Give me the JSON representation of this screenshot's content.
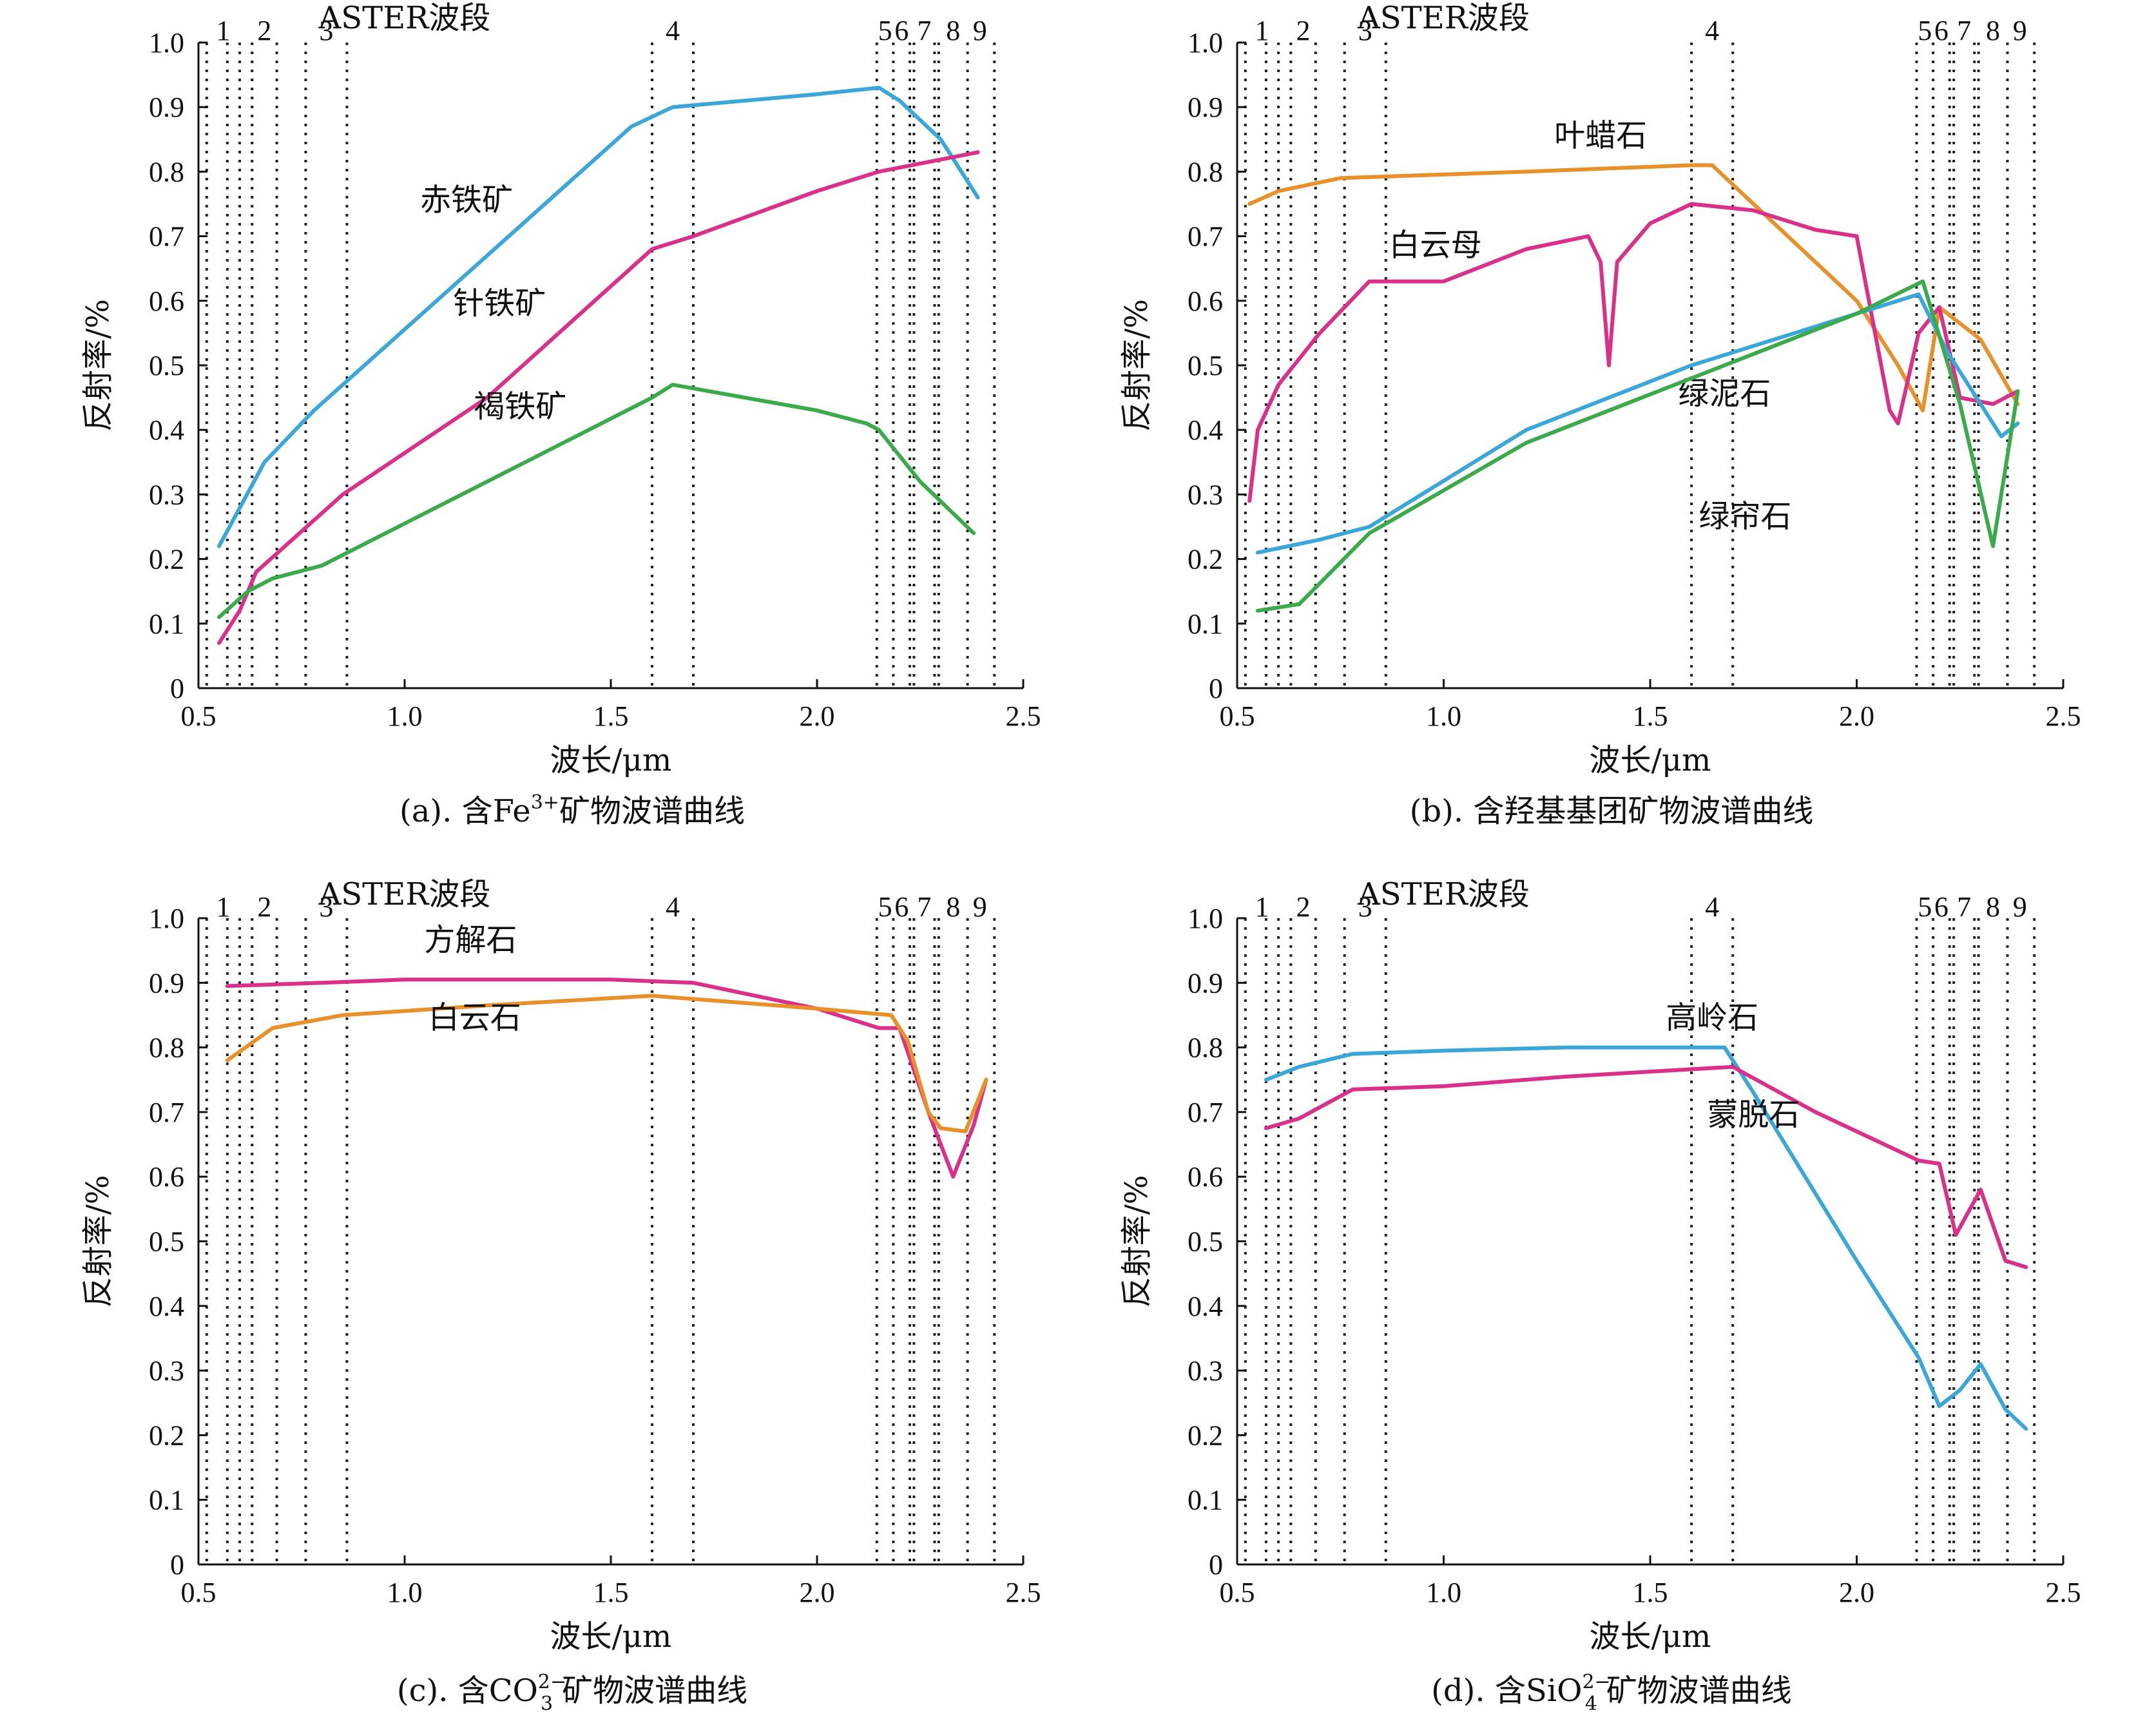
{
  "chart_data": [
    {
      "type": "line",
      "caption": {
        "prefix": "(a). 含Fe",
        "sup": "3+",
        "sub": "",
        "suffix": "矿物波谱曲线"
      },
      "band_header": "ASTER波段",
      "bands": [
        {
          "label": "1",
          "range": [
            0.52,
            0.6
          ]
        },
        {
          "label": "2",
          "range": [
            0.63,
            0.69
          ]
        },
        {
          "label": "3",
          "range": [
            0.76,
            0.86
          ]
        },
        {
          "label": "4",
          "range": [
            1.6,
            1.7
          ]
        },
        {
          "label": "5",
          "range": [
            2.145,
            2.185
          ]
        },
        {
          "label": "6",
          "range": [
            2.185,
            2.225
          ]
        },
        {
          "label": "7",
          "range": [
            2.235,
            2.285
          ]
        },
        {
          "label": "8",
          "range": [
            2.295,
            2.365
          ]
        },
        {
          "label": "9",
          "range": [
            2.36,
            2.43
          ]
        }
      ],
      "band_lines": [
        0.52,
        0.57,
        0.6,
        0.63,
        0.69,
        0.76,
        0.86,
        1.6,
        1.7,
        2.145,
        2.185,
        2.225,
        2.235,
        2.285,
        2.295,
        2.365,
        2.43
      ],
      "xlabel": "波长/μm",
      "ylabel": "反射率/%",
      "xlim": [
        0.5,
        2.5
      ],
      "ylim": [
        0,
        1.0
      ],
      "xticks": [
        "0.5",
        "1.0",
        "1.5",
        "2.0",
        "2.5"
      ],
      "yticks": [
        "0",
        "0.1",
        "0.2",
        "0.3",
        "0.4",
        "0.5",
        "0.6",
        "0.7",
        "0.8",
        "0.9",
        "1.0"
      ],
      "series": [
        {
          "name": "赤铁矿",
          "color": "#3BA6D8",
          "label_at": [
            1.15,
            0.74
          ],
          "points": [
            [
              0.55,
              0.22
            ],
            [
              0.66,
              0.35
            ],
            [
              0.78,
              0.43
            ],
            [
              1.2,
              0.67
            ],
            [
              1.55,
              0.87
            ],
            [
              1.65,
              0.9
            ],
            [
              2.0,
              0.92
            ],
            [
              2.15,
              0.93
            ],
            [
              2.2,
              0.91
            ],
            [
              2.3,
              0.85
            ],
            [
              2.39,
              0.76
            ]
          ]
        },
        {
          "name": "针铁矿",
          "color": "#D9308A",
          "label_at": [
            1.23,
            0.58
          ],
          "points": [
            [
              0.55,
              0.07
            ],
            [
              0.6,
              0.12
            ],
            [
              0.64,
              0.18
            ],
            [
              0.85,
              0.3
            ],
            [
              1.2,
              0.45
            ],
            [
              1.6,
              0.68
            ],
            [
              1.7,
              0.7
            ],
            [
              2.0,
              0.77
            ],
            [
              2.15,
              0.8
            ],
            [
              2.39,
              0.83
            ]
          ]
        },
        {
          "name": "褐铁矿",
          "color": "#3AAA4A",
          "label_at": [
            1.28,
            0.42
          ],
          "points": [
            [
              0.55,
              0.11
            ],
            [
              0.62,
              0.15
            ],
            [
              0.68,
              0.17
            ],
            [
              0.8,
              0.19
            ],
            [
              1.2,
              0.32
            ],
            [
              1.6,
              0.45
            ],
            [
              1.65,
              0.47
            ],
            [
              2.0,
              0.43
            ],
            [
              2.12,
              0.41
            ],
            [
              2.15,
              0.4
            ],
            [
              2.25,
              0.32
            ],
            [
              2.38,
              0.24
            ]
          ]
        }
      ]
    },
    {
      "type": "line",
      "caption": {
        "prefix": "(b). 含羟基基团矿物波谱曲线",
        "sup": "",
        "sub": "",
        "suffix": ""
      },
      "band_header": "ASTER波段",
      "bands": [
        {
          "label": "1",
          "range": [
            0.52,
            0.6
          ]
        },
        {
          "label": "2",
          "range": [
            0.63,
            0.69
          ]
        },
        {
          "label": "3",
          "range": [
            0.76,
            0.86
          ]
        },
        {
          "label": "4",
          "range": [
            1.6,
            1.7
          ]
        },
        {
          "label": "5",
          "range": [
            2.145,
            2.185
          ]
        },
        {
          "label": "6",
          "range": [
            2.185,
            2.225
          ]
        },
        {
          "label": "7",
          "range": [
            2.235,
            2.285
          ]
        },
        {
          "label": "8",
          "range": [
            2.295,
            2.365
          ]
        },
        {
          "label": "9",
          "range": [
            2.36,
            2.43
          ]
        }
      ],
      "band_lines": [
        0.52,
        0.57,
        0.6,
        0.63,
        0.69,
        0.76,
        0.86,
        1.6,
        1.7,
        2.145,
        2.185,
        2.225,
        2.235,
        2.285,
        2.295,
        2.365,
        2.43
      ],
      "xlabel": "波长/μm",
      "ylabel": "反射率/%",
      "xlim": [
        0.5,
        2.5
      ],
      "ylim": [
        0,
        1.0
      ],
      "xticks": [
        "0.5",
        "1.0",
        "1.5",
        "2.0",
        "2.5"
      ],
      "yticks": [
        "0",
        "0.1",
        "0.2",
        "0.3",
        "0.4",
        "0.5",
        "0.6",
        "0.7",
        "0.8",
        "0.9",
        "1.0"
      ],
      "series": [
        {
          "name": "叶蜡石",
          "color": "#E8902A",
          "label_at": [
            1.38,
            0.84
          ],
          "points": [
            [
              0.53,
              0.75
            ],
            [
              0.6,
              0.77
            ],
            [
              0.75,
              0.79
            ],
            [
              1.2,
              0.8
            ],
            [
              1.6,
              0.81
            ],
            [
              1.65,
              0.81
            ],
            [
              1.8,
              0.72
            ],
            [
              2.0,
              0.6
            ],
            [
              2.1,
              0.5
            ],
            [
              2.16,
              0.43
            ],
            [
              2.2,
              0.59
            ],
            [
              2.3,
              0.54
            ],
            [
              2.39,
              0.44
            ]
          ]
        },
        {
          "name": "白云母",
          "color": "#D9308A",
          "label_at": [
            0.98,
            0.67
          ],
          "points": [
            [
              0.53,
              0.29
            ],
            [
              0.55,
              0.4
            ],
            [
              0.6,
              0.47
            ],
            [
              0.7,
              0.55
            ],
            [
              0.82,
              0.63
            ],
            [
              1.0,
              0.63
            ],
            [
              1.2,
              0.68
            ],
            [
              1.35,
              0.7
            ],
            [
              1.38,
              0.66
            ],
            [
              1.4,
              0.5
            ],
            [
              1.42,
              0.66
            ],
            [
              1.5,
              0.72
            ],
            [
              1.6,
              0.75
            ],
            [
              1.75,
              0.74
            ],
            [
              1.9,
              0.71
            ],
            [
              2.0,
              0.7
            ],
            [
              2.08,
              0.43
            ],
            [
              2.1,
              0.41
            ],
            [
              2.15,
              0.55
            ],
            [
              2.2,
              0.59
            ],
            [
              2.25,
              0.45
            ],
            [
              2.33,
              0.44
            ],
            [
              2.39,
              0.46
            ]
          ]
        },
        {
          "name": "绿泥石",
          "color": "#3BA6D8",
          "label_at": [
            1.68,
            0.44
          ],
          "points": [
            [
              0.55,
              0.21
            ],
            [
              0.7,
              0.23
            ],
            [
              0.82,
              0.25
            ],
            [
              1.2,
              0.4
            ],
            [
              1.6,
              0.5
            ],
            [
              2.0,
              0.58
            ],
            [
              2.15,
              0.61
            ],
            [
              2.22,
              0.52
            ],
            [
              2.35,
              0.39
            ],
            [
              2.39,
              0.41
            ]
          ]
        },
        {
          "name": "绿帘石",
          "color": "#3AAA4A",
          "label_at": [
            1.73,
            0.25
          ],
          "points": [
            [
              0.55,
              0.12
            ],
            [
              0.65,
              0.13
            ],
            [
              0.82,
              0.24
            ],
            [
              1.2,
              0.38
            ],
            [
              1.6,
              0.48
            ],
            [
              2.0,
              0.58
            ],
            [
              2.16,
              0.63
            ],
            [
              2.25,
              0.44
            ],
            [
              2.33,
              0.22
            ],
            [
              2.39,
              0.46
            ]
          ]
        }
      ]
    },
    {
      "type": "line",
      "caption": {
        "prefix": "(c). 含CO",
        "sup": "2−",
        "sub": "3",
        "suffix": "矿物波谱曲线"
      },
      "band_header": "ASTER波段",
      "bands": [
        {
          "label": "1",
          "range": [
            0.52,
            0.6
          ]
        },
        {
          "label": "2",
          "range": [
            0.63,
            0.69
          ]
        },
        {
          "label": "3",
          "range": [
            0.76,
            0.86
          ]
        },
        {
          "label": "4",
          "range": [
            1.6,
            1.7
          ]
        },
        {
          "label": "5",
          "range": [
            2.145,
            2.185
          ]
        },
        {
          "label": "6",
          "range": [
            2.185,
            2.225
          ]
        },
        {
          "label": "7",
          "range": [
            2.235,
            2.285
          ]
        },
        {
          "label": "8",
          "range": [
            2.295,
            2.365
          ]
        },
        {
          "label": "9",
          "range": [
            2.36,
            2.43
          ]
        }
      ],
      "band_lines": [
        0.52,
        0.57,
        0.6,
        0.63,
        0.69,
        0.76,
        0.86,
        1.6,
        1.7,
        2.145,
        2.185,
        2.225,
        2.235,
        2.285,
        2.295,
        2.365,
        2.43
      ],
      "xlabel": "波长/μm",
      "ylabel": "反射率/%",
      "xlim": [
        0.5,
        2.5
      ],
      "ylim": [
        0,
        1.0
      ],
      "xticks": [
        "0.5",
        "1.0",
        "1.5",
        "2.0",
        "2.5"
      ],
      "yticks": [
        "0",
        "0.1",
        "0.2",
        "0.3",
        "0.4",
        "0.5",
        "0.6",
        "0.7",
        "0.8",
        "0.9",
        "1.0"
      ],
      "series": [
        {
          "name": "方解石",
          "color": "#D9308A",
          "label_at": [
            1.16,
            0.95
          ],
          "points": [
            [
              0.57,
              0.895
            ],
            [
              0.8,
              0.9
            ],
            [
              1.0,
              0.905
            ],
            [
              1.5,
              0.905
            ],
            [
              1.7,
              0.9
            ],
            [
              2.0,
              0.86
            ],
            [
              2.15,
              0.83
            ],
            [
              2.2,
              0.83
            ],
            [
              2.27,
              0.7
            ],
            [
              2.33,
              0.6
            ],
            [
              2.38,
              0.68
            ],
            [
              2.41,
              0.75
            ]
          ]
        },
        {
          "name": "白云石",
          "color": "#E8902A",
          "label_at": [
            1.17,
            0.83
          ],
          "points": [
            [
              0.57,
              0.78
            ],
            [
              0.68,
              0.83
            ],
            [
              0.85,
              0.85
            ],
            [
              1.2,
              0.865
            ],
            [
              1.6,
              0.88
            ],
            [
              1.8,
              0.87
            ],
            [
              2.0,
              0.86
            ],
            [
              2.18,
              0.85
            ],
            [
              2.22,
              0.81
            ],
            [
              2.27,
              0.7
            ],
            [
              2.3,
              0.675
            ],
            [
              2.36,
              0.67
            ],
            [
              2.41,
              0.75
            ]
          ]
        }
      ]
    },
    {
      "type": "line",
      "caption": {
        "prefix": "(d). 含SiO",
        "sup": "2−",
        "sub": "4",
        "suffix": "矿物波谱曲线"
      },
      "band_header": "ASTER波段",
      "bands": [
        {
          "label": "1",
          "range": [
            0.52,
            0.6
          ]
        },
        {
          "label": "2",
          "range": [
            0.63,
            0.69
          ]
        },
        {
          "label": "3",
          "range": [
            0.76,
            0.86
          ]
        },
        {
          "label": "4",
          "range": [
            1.6,
            1.7
          ]
        },
        {
          "label": "5",
          "range": [
            2.145,
            2.185
          ]
        },
        {
          "label": "6",
          "range": [
            2.185,
            2.225
          ]
        },
        {
          "label": "7",
          "range": [
            2.235,
            2.285
          ]
        },
        {
          "label": "8",
          "range": [
            2.295,
            2.365
          ]
        },
        {
          "label": "9",
          "range": [
            2.36,
            2.43
          ]
        }
      ],
      "band_lines": [
        0.52,
        0.57,
        0.6,
        0.63,
        0.69,
        0.76,
        0.86,
        1.6,
        1.7,
        2.145,
        2.185,
        2.225,
        2.235,
        2.285,
        2.295,
        2.365,
        2.43
      ],
      "xlabel": "波长/μm",
      "ylabel": "反射率/%",
      "xlim": [
        0.5,
        2.5
      ],
      "ylim": [
        0,
        1.0
      ],
      "xticks": [
        "0.5",
        "1.0",
        "1.5",
        "2.0",
        "2.5"
      ],
      "yticks": [
        "0",
        "0.1",
        "0.2",
        "0.3",
        "0.4",
        "0.5",
        "0.6",
        "0.7",
        "0.8",
        "0.9",
        "1.0"
      ],
      "series": [
        {
          "name": "高岭石",
          "color": "#3BA6D8",
          "label_at": [
            1.65,
            0.83
          ],
          "points": [
            [
              0.57,
              0.75
            ],
            [
              0.65,
              0.77
            ],
            [
              0.78,
              0.79
            ],
            [
              1.0,
              0.795
            ],
            [
              1.3,
              0.8
            ],
            [
              1.68,
              0.8
            ],
            [
              1.75,
              0.73
            ],
            [
              2.0,
              0.47
            ],
            [
              2.15,
              0.32
            ],
            [
              2.2,
              0.245
            ],
            [
              2.25,
              0.27
            ],
            [
              2.3,
              0.31
            ],
            [
              2.36,
              0.24
            ],
            [
              2.41,
              0.21
            ]
          ]
        },
        {
          "name": "蒙脱石",
          "color": "#D9308A",
          "label_at": [
            1.75,
            0.68
          ],
          "points": [
            [
              0.57,
              0.675
            ],
            [
              0.65,
              0.69
            ],
            [
              0.78,
              0.735
            ],
            [
              1.0,
              0.74
            ],
            [
              1.3,
              0.755
            ],
            [
              1.7,
              0.77
            ],
            [
              1.9,
              0.7
            ],
            [
              2.15,
              0.625
            ],
            [
              2.2,
              0.62
            ],
            [
              2.24,
              0.51
            ],
            [
              2.3,
              0.58
            ],
            [
              2.36,
              0.47
            ],
            [
              2.41,
              0.46
            ]
          ]
        }
      ]
    }
  ]
}
